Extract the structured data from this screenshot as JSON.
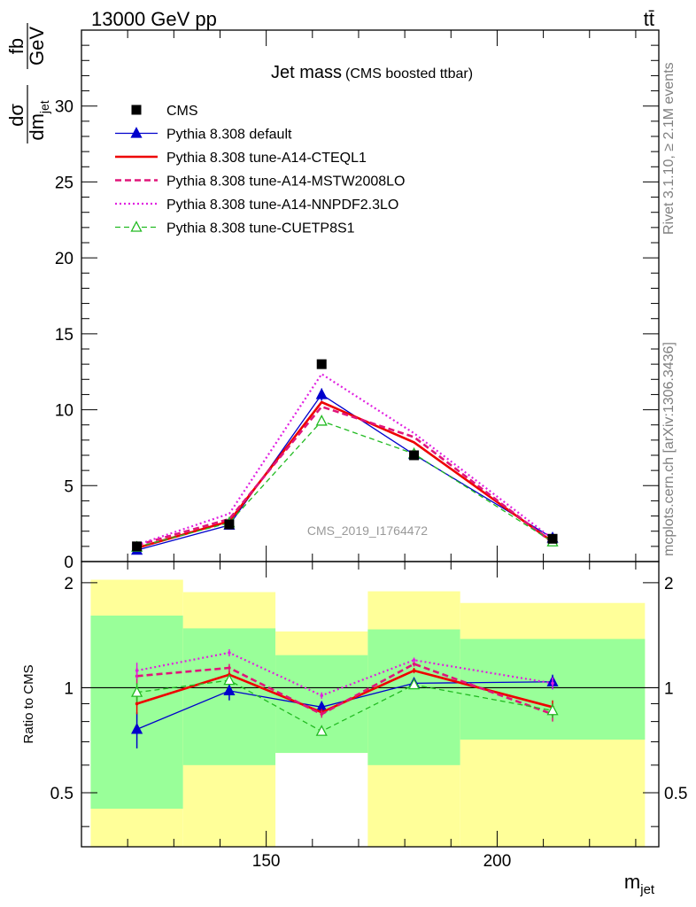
{
  "header": {
    "energy": "13000 GeV pp",
    "process": "tt̄"
  },
  "side_text": {
    "rivet": "Rivet 3.1.10, ≥ 2.1M events",
    "mcplots": "mcplots.cern.ch [arXiv:1306.3436]"
  },
  "chart_data": [
    {
      "type": "line",
      "title": "Jet mass",
      "subtitle": "(CMS boosted ttbar)",
      "analysis": "CMS_2019_I1764472",
      "xlabel": "m",
      "xlabel_sub": "jet",
      "ylabel": "dσ/dm_jet fb/GeV",
      "ylabel_parts": {
        "num": "dσ",
        "den": "dm",
        "den_sub": "jet",
        "unit_num": "fb",
        "unit_den": "GeV"
      },
      "xlim": [
        110,
        235
      ],
      "ylim": [
        0,
        35
      ],
      "y_ticks": [
        "0",
        "5",
        "10",
        "15",
        "20",
        "25",
        "30"
      ],
      "x_ticks": [
        "150",
        "200"
      ],
      "legend_position": "top-left",
      "x": [
        122,
        142,
        162,
        182,
        212
      ],
      "bin_edges": [
        112,
        132,
        152,
        172,
        192,
        232
      ],
      "series": [
        {
          "name": "CMS",
          "style": "data",
          "color": "#000000",
          "values": [
            1.0,
            2.45,
            13.0,
            7.0,
            1.5
          ]
        },
        {
          "name": "Pythia 8.308 default",
          "style": "solid-thin",
          "marker": "triangle-filled",
          "color": "#0000cc",
          "values": [
            0.75,
            2.4,
            11.0,
            7.05,
            1.55
          ]
        },
        {
          "name": "Pythia 8.308 tune-A14-CTEQL1",
          "style": "solid-thick",
          "color": "#ee0000",
          "values": [
            0.9,
            2.65,
            10.5,
            7.85,
            1.3
          ]
        },
        {
          "name": "Pythia 8.308 tune-A14-MSTW2008LO",
          "style": "dashed-thick",
          "color": "#e0157a",
          "values": [
            1.07,
            2.8,
            10.2,
            8.2,
            1.25
          ]
        },
        {
          "name": "Pythia 8.308 tune-A14-NNPDF2.3LO",
          "style": "dotted",
          "color": "#e020e0",
          "values": [
            1.1,
            3.15,
            12.35,
            8.45,
            1.5
          ]
        },
        {
          "name": "Pythia 8.308 tune-CUETP8S1",
          "style": "dashed-thin",
          "marker": "triangle-open",
          "color": "#22bb22",
          "values": [
            0.95,
            2.55,
            9.25,
            7.1,
            1.3
          ]
        }
      ]
    },
    {
      "type": "line",
      "ylabel": "Ratio to CMS",
      "ylim": [
        0.35,
        2.3
      ],
      "y_scale": "log",
      "y_ticks": [
        "0.5",
        "1",
        "2"
      ],
      "x": [
        122,
        142,
        162,
        182,
        212
      ],
      "bin_edges": [
        112,
        132,
        152,
        172,
        192,
        232
      ],
      "bands": {
        "green_lo": [
          0.45,
          0.6,
          0.65,
          0.6,
          0.71
        ],
        "green_hi": [
          1.61,
          1.48,
          1.24,
          1.47,
          1.38
        ],
        "yellow_lo": [
          0.35,
          0.35,
          0.35,
          0.35,
          0.35
        ],
        "yellow_hi": [
          2.04,
          1.88,
          1.45,
          1.89,
          1.75
        ],
        "colors": {
          "green": "#99ff99",
          "yellow": "#ffff99"
        },
        "note": "band hidden (white) in bin 3 below green_lo"
      },
      "series": [
        {
          "name": "Pythia 8.308 default",
          "color": "#0000cc",
          "values": [
            0.76,
            0.98,
            0.88,
            1.03,
            1.04
          ],
          "errors": [
            0.09,
            0.06,
            0.03,
            0.02,
            0.05
          ]
        },
        {
          "name": "Pythia 8.308 tune-A14-CTEQL1",
          "color": "#ee0000",
          "values": [
            0.9,
            1.09,
            0.85,
            1.12,
            0.88
          ],
          "errors": [
            0.06,
            0.03,
            0.02,
            0.02,
            0.04
          ]
        },
        {
          "name": "Pythia 8.308 tune-A14-MSTW2008LO",
          "color": "#e0157a",
          "values": [
            1.08,
            1.14,
            0.84,
            1.17,
            0.84
          ],
          "errors": [
            0.06,
            0.03,
            0.02,
            0.02,
            0.04
          ]
        },
        {
          "name": "Pythia 8.308 tune-A14-NNPDF2.3LO",
          "color": "#e020e0",
          "values": [
            1.12,
            1.26,
            0.95,
            1.2,
            1.03
          ],
          "errors": [
            0.06,
            0.03,
            0.02,
            0.02,
            0.04
          ]
        },
        {
          "name": "Pythia 8.308 tune-CUETP8S1",
          "color": "#22bb22",
          "values": [
            0.97,
            1.05,
            0.75,
            1.02,
            0.86
          ],
          "errors": [
            0.06,
            0.03,
            0.02,
            0.02,
            0.04
          ]
        }
      ]
    }
  ]
}
